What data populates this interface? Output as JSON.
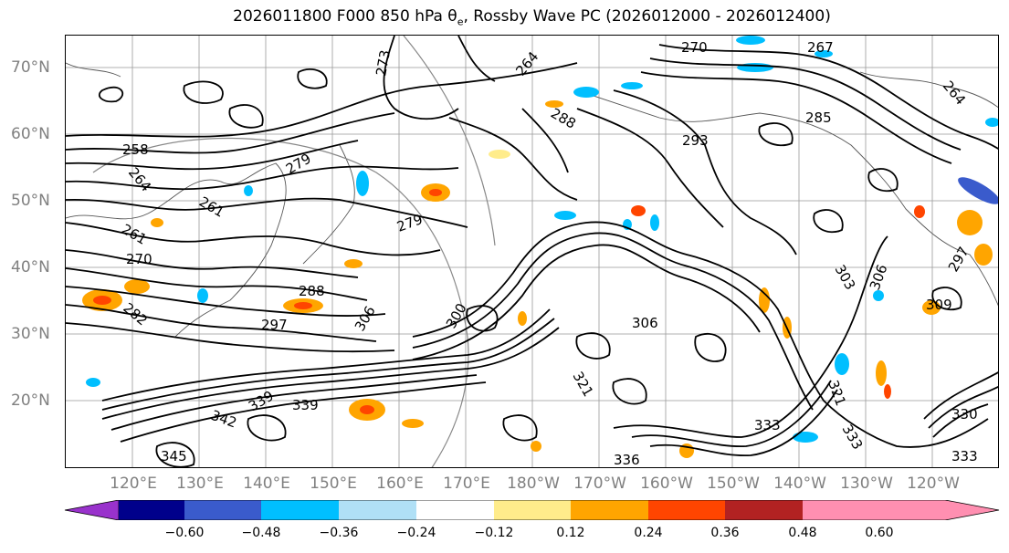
{
  "title": {
    "prefix": "2026011800 F000 850 hPa θ",
    "sub": "e",
    "suffix": ", Rossby Wave PC (2026012000 - 2026012400)"
  },
  "lat_labels": [
    "70°N",
    "60°N",
    "50°N",
    "40°N",
    "30°N",
    "20°N"
  ],
  "lon_labels": [
    "120°E",
    "130°E",
    "140°E",
    "150°E",
    "160°E",
    "170°E",
    "180°W",
    "170°W",
    "160°W",
    "150°W",
    "140°W",
    "130°W",
    "120°W"
  ],
  "contour_labels": [
    "270",
    "267",
    "273",
    "264",
    "264",
    "285",
    "288",
    "293",
    "279",
    "279",
    "258",
    "261",
    "264",
    "261",
    "270",
    "282",
    "288",
    "297",
    "306",
    "300",
    "306",
    "303",
    "306",
    "309",
    "297",
    "321",
    "321",
    "333",
    "333",
    "330",
    "333",
    "339",
    "342",
    "339",
    "336",
    "345"
  ],
  "colorbar": {
    "colors": [
      "#9932cc",
      "#00008b",
      "#3a5bcc",
      "#00bfff",
      "#b0e0f6",
      "#ffffff",
      "#ffec8b",
      "#ffa500",
      "#ff4500",
      "#b22222",
      "#ff8fb1"
    ],
    "tick_labels": [
      "−0.60",
      "−0.48",
      "−0.36",
      "−0.24",
      "−0.12",
      "0.12",
      "0.24",
      "0.36",
      "0.48",
      "0.60"
    ]
  }
}
